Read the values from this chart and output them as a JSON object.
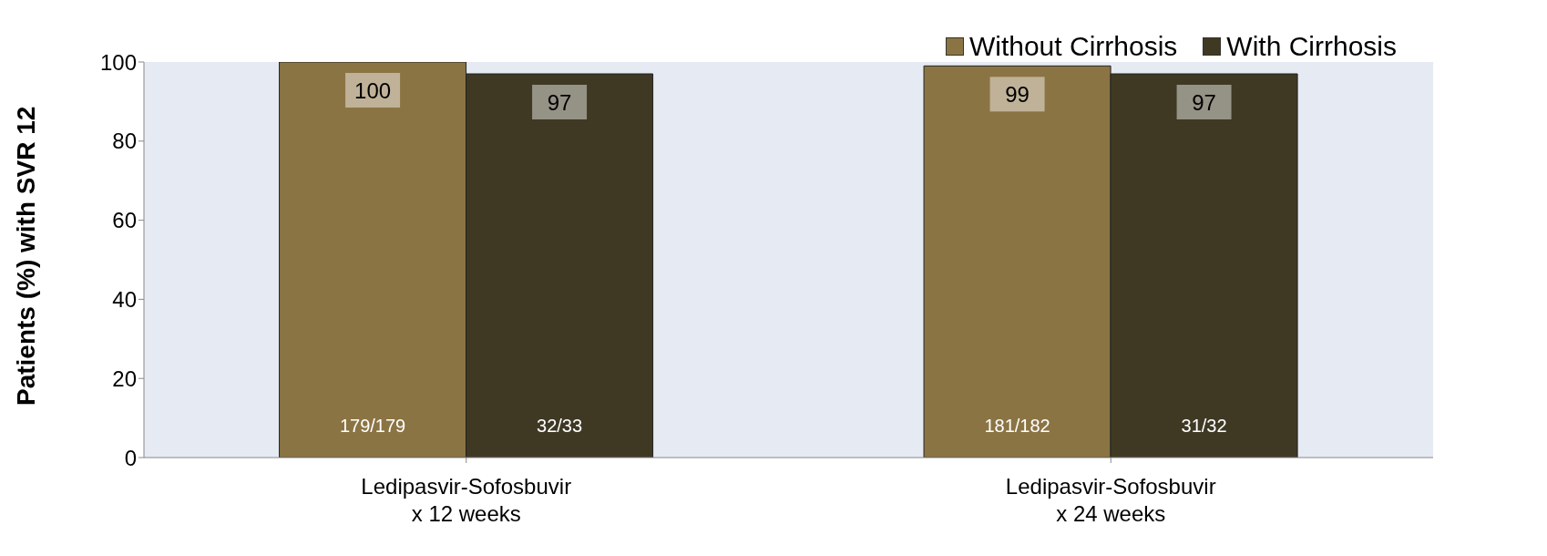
{
  "chart_data": {
    "type": "bar",
    "ylabel": "Patients (%) with SVR 12",
    "categories": [
      "Ledipasvir-Sofosbuvir\nx 12 weeks",
      "Ledipasvir-Sofosbuvir\nx 24 weeks"
    ],
    "series": [
      {
        "name": "Without Cirrhosis",
        "color": "#8b7444",
        "values": [
          100,
          99
        ]
      },
      {
        "name": "With Cirrhosis",
        "color": "#3f3924",
        "values": [
          97,
          97
        ]
      }
    ],
    "ylim": [
      0,
      100
    ],
    "yticks": [
      0,
      20,
      40,
      60,
      80,
      100
    ],
    "grid": false,
    "legend": "top right",
    "data_labels": true,
    "annotations": [
      "179/179",
      "32/33",
      "181/182",
      "31/32"
    ]
  }
}
